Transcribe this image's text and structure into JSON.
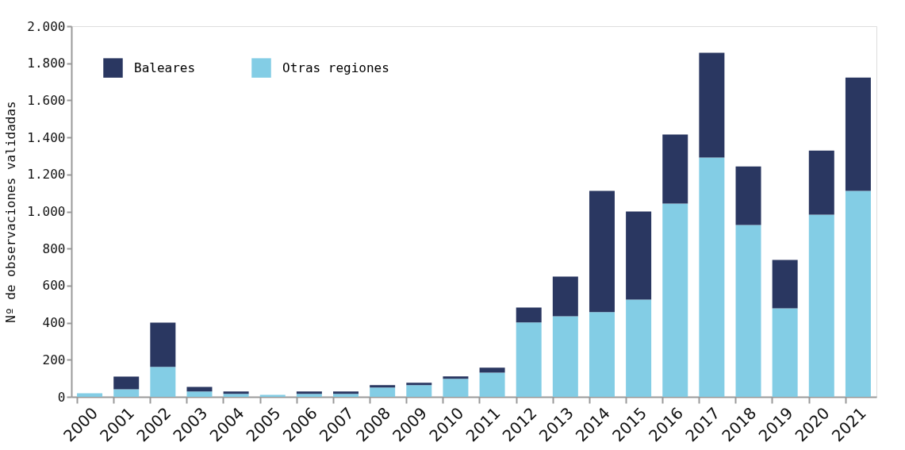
{
  "chart_data": {
    "type": "bar",
    "stacked": true,
    "ylabel": "Nº de observaciones validadas",
    "categories": [
      "2000",
      "2001",
      "2002",
      "2003",
      "2004",
      "2005",
      "2006",
      "2007",
      "2008",
      "2009",
      "2010",
      "2011",
      "2012",
      "2013",
      "2014",
      "2015",
      "2016",
      "2017",
      "2018",
      "2019",
      "2020",
      "2021"
    ],
    "series": [
      {
        "name": "Otras regiones",
        "color": "#83cde5",
        "values": [
          19,
          41,
          162,
          29,
          16,
          11,
          16,
          16,
          50,
          63,
          97,
          131,
          401,
          435,
          457,
          525,
          1043,
          1291,
          927,
          478,
          983,
          1111
        ]
      },
      {
        "name": "Baleares",
        "color": "#2a3761",
        "values": [
          0,
          68,
          238,
          24,
          13,
          0,
          13,
          13,
          13,
          13,
          13,
          26,
          81,
          214,
          654,
          475,
          372,
          566,
          316,
          261,
          346,
          612
        ]
      }
    ],
    "ylim": [
      0,
      2000
    ],
    "yticks": [
      {
        "value": 0,
        "label": "0"
      },
      {
        "value": 200,
        "label": "200"
      },
      {
        "value": 400,
        "label": "400"
      },
      {
        "value": 600,
        "label": "600"
      },
      {
        "value": 800,
        "label": "800"
      },
      {
        "value": 1000,
        "label": "1.000"
      },
      {
        "value": 1200,
        "label": "1.200"
      },
      {
        "value": 1400,
        "label": "1.400"
      },
      {
        "value": 1600,
        "label": "1.600"
      },
      {
        "value": 1800,
        "label": "1.800"
      },
      {
        "value": 2000,
        "label": "2.000"
      }
    ],
    "grid": false,
    "legend": "top left"
  }
}
